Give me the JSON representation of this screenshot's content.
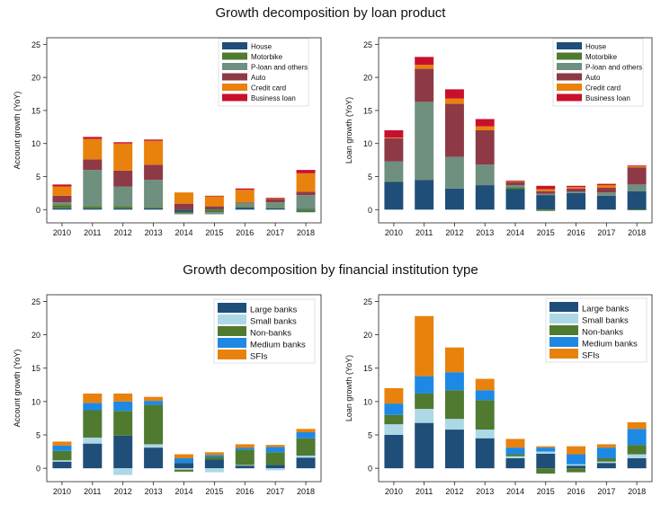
{
  "titles": {
    "top": "Growth decomposition by loan product",
    "bottom": "Growth decomposition by financial institution type"
  },
  "colors": {
    "House": "#1f4e79",
    "Motorbike": "#4f7a2f",
    "P-loan and others": "#6f8f7f",
    "Auto": "#8e3a46",
    "Credit card": "#e8820c",
    "Business loan": "#c8102e",
    "Large banks": "#1f4e79",
    "Small banks": "#add8e6",
    "Non-banks": "#4f7a2f",
    "Medium banks": "#1e88e5",
    "SFIs": "#e8820c"
  },
  "chart_data": [
    {
      "type": "bar",
      "stacked": true,
      "ylabel": "Account growth (YoY)",
      "ylim": [
        -2,
        26
      ],
      "yticks": [
        0,
        5,
        10,
        15,
        20,
        25
      ],
      "categories": [
        "2010",
        "2011",
        "2012",
        "2013",
        "2014",
        "2015",
        "2016",
        "2017",
        "2018"
      ],
      "legend_position": "top-right",
      "series": [
        {
          "name": "House",
          "values": [
            0.2,
            0.2,
            0.2,
            0.2,
            -0.3,
            0.1,
            0.3,
            0.2,
            0.1
          ]
        },
        {
          "name": "Motorbike",
          "values": [
            0.5,
            0.3,
            0.3,
            0.2,
            -0.2,
            -0.4,
            0.1,
            0.1,
            -0.4
          ]
        },
        {
          "name": "P-loan and others",
          "values": [
            0.4,
            5.5,
            3.0,
            4.1,
            -0.2,
            -0.3,
            0.6,
            0.8,
            2.1
          ]
        },
        {
          "name": "Auto",
          "values": [
            1.0,
            1.6,
            2.4,
            2.3,
            0.9,
            0.4,
            0.1,
            0.5,
            0.5
          ]
        },
        {
          "name": "Credit card",
          "values": [
            1.4,
            3.1,
            4.1,
            3.6,
            1.7,
            1.5,
            1.9,
            0.1,
            2.8
          ]
        },
        {
          "name": "Business loan",
          "values": [
            0.3,
            0.3,
            0.2,
            0.2,
            0.0,
            0.1,
            0.2,
            0.1,
            0.5
          ]
        }
      ]
    },
    {
      "type": "bar",
      "stacked": true,
      "ylabel": "Loan growth (YoY)",
      "ylim": [
        -2,
        26
      ],
      "yticks": [
        0,
        5,
        10,
        15,
        20,
        25
      ],
      "categories": [
        "2010",
        "2011",
        "2012",
        "2013",
        "2014",
        "2015",
        "2016",
        "2017",
        "2018"
      ],
      "legend_position": "top-right",
      "series": [
        {
          "name": "House",
          "values": [
            4.2,
            4.5,
            3.2,
            3.7,
            3.1,
            2.2,
            2.5,
            2.1,
            2.8
          ]
        },
        {
          "name": "Motorbike",
          "values": [
            0.1,
            0.0,
            0.0,
            0.0,
            0.3,
            -0.2,
            0.0,
            0.0,
            -0.1
          ]
        },
        {
          "name": "P-loan and others",
          "values": [
            3.0,
            11.8,
            4.8,
            3.1,
            0.3,
            0.2,
            0.2,
            0.5,
            1.0
          ]
        },
        {
          "name": "Auto",
          "values": [
            3.5,
            5.0,
            8.0,
            5.2,
            0.5,
            0.4,
            0.5,
            0.7,
            2.6
          ]
        },
        {
          "name": "Credit card",
          "values": [
            0.1,
            0.6,
            0.8,
            0.6,
            0.1,
            0.3,
            0.2,
            0.4,
            0.2
          ]
        },
        {
          "name": "Business loan",
          "values": [
            1.1,
            1.2,
            1.4,
            1.1,
            0.1,
            0.5,
            0.2,
            0.2,
            0.1
          ]
        }
      ]
    },
    {
      "type": "bar",
      "stacked": true,
      "ylabel": "Account growth (YoY)",
      "ylim": [
        -2,
        26
      ],
      "yticks": [
        0,
        5,
        10,
        15,
        20,
        25
      ],
      "categories": [
        "2010",
        "2011",
        "2012",
        "2013",
        "2014",
        "2015",
        "2016",
        "2017",
        "2018"
      ],
      "legend_position": "top-right",
      "series": [
        {
          "name": "Large banks",
          "values": [
            1.0,
            3.7,
            4.9,
            3.1,
            0.8,
            1.3,
            0.4,
            0.5,
            1.6
          ]
        },
        {
          "name": "Small banks",
          "values": [
            0.2,
            0.9,
            -1.0,
            0.5,
            -0.2,
            -0.6,
            0.1,
            -0.3,
            0.3
          ]
        },
        {
          "name": "Non-banks",
          "values": [
            1.4,
            4.1,
            3.7,
            5.9,
            -0.3,
            0.4,
            2.3,
            1.9,
            2.6
          ]
        },
        {
          "name": "Medium banks",
          "values": [
            0.8,
            1.1,
            1.4,
            0.6,
            0.7,
            0.3,
            0.3,
            0.8,
            0.9
          ]
        },
        {
          "name": "SFIs",
          "values": [
            0.6,
            1.4,
            1.2,
            0.6,
            0.6,
            0.4,
            0.5,
            0.3,
            0.5
          ]
        }
      ]
    },
    {
      "type": "bar",
      "stacked": true,
      "ylabel": "Loan growth (YoY)",
      "ylim": [
        -2,
        26
      ],
      "yticks": [
        0,
        5,
        10,
        15,
        20,
        25
      ],
      "categories": [
        "2010",
        "2011",
        "2012",
        "2013",
        "2014",
        "2015",
        "2016",
        "2017",
        "2018"
      ],
      "legend_position": "top-right",
      "series": [
        {
          "name": "Large banks",
          "values": [
            5.0,
            6.8,
            5.8,
            4.5,
            1.5,
            2.2,
            0.4,
            0.8,
            1.5
          ]
        },
        {
          "name": "Small banks",
          "values": [
            1.6,
            2.1,
            1.6,
            1.3,
            0.3,
            0.3,
            0.2,
            0.2,
            0.6
          ]
        },
        {
          "name": "Non-banks",
          "values": [
            1.4,
            2.3,
            4.3,
            4.4,
            0.3,
            -0.8,
            -0.6,
            0.5,
            1.4
          ]
        },
        {
          "name": "Medium banks",
          "values": [
            1.7,
            2.6,
            2.7,
            1.5,
            1.0,
            0.6,
            1.5,
            1.6,
            2.4
          ]
        },
        {
          "name": "SFIs",
          "values": [
            2.3,
            9.0,
            3.7,
            1.7,
            1.3,
            0.2,
            1.2,
            0.5,
            1.0
          ]
        }
      ]
    }
  ]
}
